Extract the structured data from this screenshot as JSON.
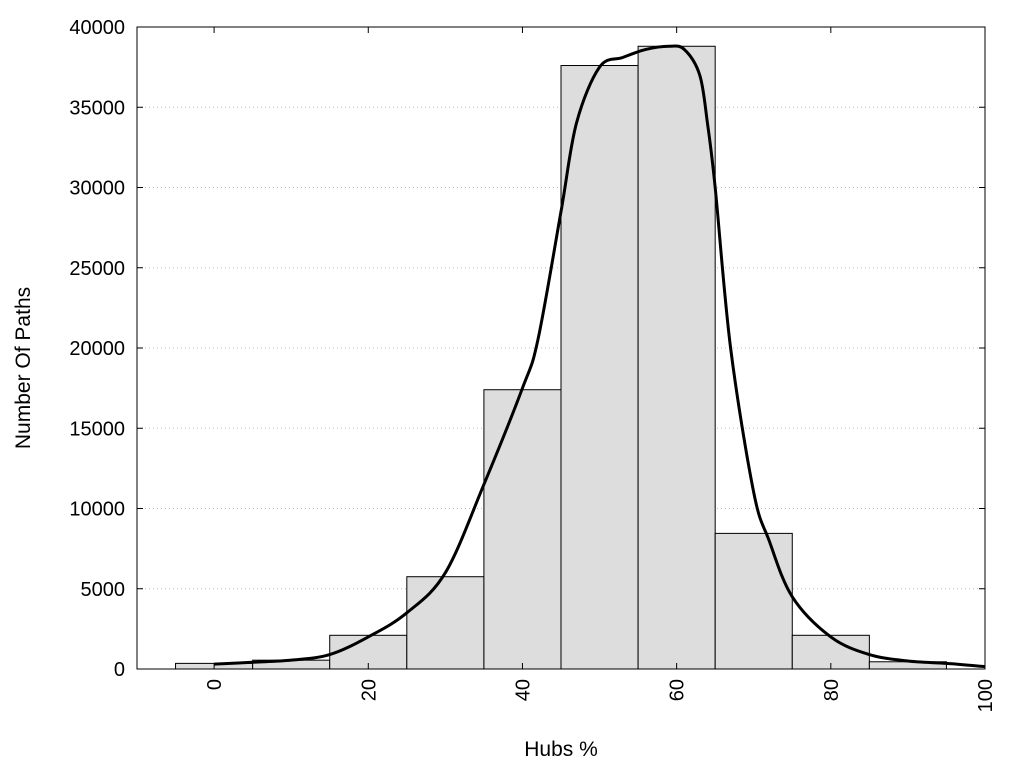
{
  "chart_data": {
    "type": "bar",
    "title": "",
    "xlabel": "Hubs %",
    "ylabel": "Number Of Paths",
    "xlim": [
      -10,
      100
    ],
    "ylim": [
      0,
      40000
    ],
    "x_ticks": [
      0,
      20,
      40,
      60,
      80,
      100
    ],
    "y_ticks": [
      0,
      5000,
      10000,
      15000,
      20000,
      25000,
      30000,
      35000,
      40000
    ],
    "grid": "horizontal dotted",
    "bin_width": 10,
    "categories": [
      0,
      10,
      20,
      30,
      40,
      50,
      60,
      70,
      80,
      90
    ],
    "values": [
      350,
      550,
      2100,
      5750,
      17400,
      37600,
      38800,
      8450,
      2100,
      450
    ],
    "bar_color": "#dddddd",
    "curve": {
      "x": [
        0,
        5,
        10,
        15,
        20,
        25,
        30,
        35,
        40,
        42,
        45,
        47,
        50,
        53,
        56,
        59,
        61,
        63,
        64,
        65,
        67,
        70,
        72,
        75,
        80,
        85,
        90,
        95,
        100
      ],
      "y": [
        300,
        420,
        550,
        900,
        2000,
        3500,
        6000,
        11500,
        17500,
        20500,
        28500,
        34000,
        37500,
        38100,
        38600,
        38800,
        38600,
        37000,
        34000,
        30000,
        20000,
        11000,
        8000,
        4500,
        2000,
        900,
        500,
        350,
        150
      ]
    },
    "curve_color": "#000000"
  }
}
